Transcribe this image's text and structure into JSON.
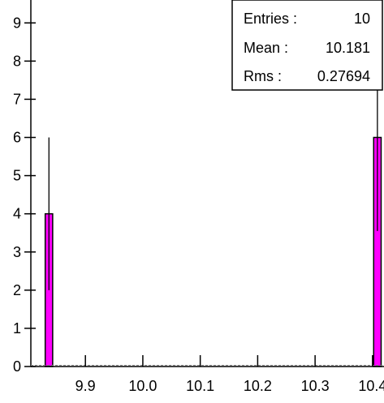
{
  "chart_data": {
    "type": "bar",
    "xlim": [
      9.805,
      10.42
    ],
    "ylim": [
      0,
      9.6
    ],
    "x_ticks": [
      "9.9",
      "10.0",
      "10.1",
      "10.2",
      "10.3",
      "10.4"
    ],
    "x_tick_values": [
      9.9,
      10.0,
      10.1,
      10.2,
      10.3,
      10.4
    ],
    "y_ticks": [
      "0",
      "1",
      "2",
      "3",
      "4",
      "5",
      "6",
      "7",
      "8",
      "9"
    ],
    "y_tick_values": [
      0,
      1,
      2,
      3,
      4,
      5,
      6,
      7,
      8,
      9
    ],
    "bars": [
      {
        "x_low": 9.83,
        "x_high": 9.843,
        "value": 4,
        "error": 2
      },
      {
        "x_low": 10.402,
        "x_high": 10.415,
        "value": 6,
        "error": 2.45
      }
    ],
    "bar_color": "#ff00ff",
    "stats": [
      {
        "label": "Entries :",
        "value": "10"
      },
      {
        "label": "Mean :",
        "value": "10.181"
      },
      {
        "label": "Rms :",
        "value": "0.27694"
      }
    ]
  }
}
